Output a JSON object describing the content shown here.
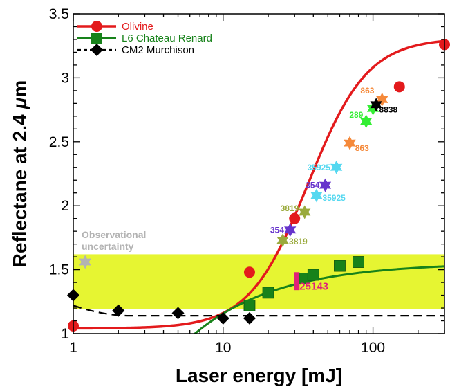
{
  "chart_data": {
    "type": "scatter",
    "title": "",
    "xlabel": "Laser energy [mJ]",
    "ylabel_parts": [
      "Reflectane at 2.4 ",
      "μ",
      "m"
    ],
    "xscale": "log",
    "xlim": [
      1,
      300
    ],
    "ylim": [
      1,
      3.5
    ],
    "x_ticks": [
      1,
      10,
      100
    ],
    "x_tick_labels": [
      "1",
      "10",
      "100"
    ],
    "y_ticks": [
      1,
      1.5,
      2,
      2.5,
      3,
      3.5
    ],
    "y_tick_labels": [
      "1",
      "1.5",
      "2",
      "2.5",
      "3",
      "3.5"
    ],
    "legend_position": "top-left",
    "series": [
      {
        "name": "Olivine",
        "color": "#e31a1c",
        "marker": "circle",
        "points": [
          [
            1,
            1.06
          ],
          [
            15,
            1.48
          ],
          [
            30,
            1.9
          ],
          [
            150,
            2.93
          ],
          [
            300,
            3.26
          ]
        ],
        "fit": {
          "type": "sigmoid-log",
          "A": 1.04,
          "B": 2.27,
          "x0": 37,
          "p": 2.2
        }
      },
      {
        "name": "L6 Chateau Renard",
        "color": "#17821a",
        "marker": "square",
        "points": [
          [
            15,
            1.22
          ],
          [
            20,
            1.32
          ],
          [
            35,
            1.43
          ],
          [
            40,
            1.46
          ],
          [
            60,
            1.53
          ],
          [
            80,
            1.56
          ]
        ],
        "fit": {
          "type": "exp-log",
          "A": 1.555,
          "B": 0.63,
          "k": 1.77,
          "xmin": 5.5
        }
      },
      {
        "name": "CM2 Murchison",
        "color": "#000000",
        "marker": "diamond",
        "points": [
          [
            1,
            1.3
          ],
          [
            2,
            1.18
          ],
          [
            5,
            1.16
          ],
          [
            10,
            1.12
          ],
          [
            15,
            1.12
          ]
        ],
        "fit": {
          "type": "dashed-level",
          "y0": 1.14,
          "start": [
            1,
            1.22
          ]
        }
      }
    ],
    "stars": [
      {
        "x": 1.2,
        "y": 1.56,
        "color": "#b3b3b3"
      },
      {
        "x": 25,
        "y": 1.73,
        "color": "#9aaa3c"
      },
      {
        "x": 28,
        "y": 1.81,
        "color": "#6633cc"
      },
      {
        "x": 35,
        "y": 1.95,
        "color": "#9aaa3c"
      },
      {
        "x": 42,
        "y": 2.08,
        "color": "#55d8f0"
      },
      {
        "x": 48,
        "y": 2.16,
        "color": "#6633cc"
      },
      {
        "x": 57,
        "y": 2.3,
        "color": "#55d8f0"
      },
      {
        "x": 70,
        "y": 2.49,
        "color": "#f5893a"
      },
      {
        "x": 90,
        "y": 2.66,
        "color": "#33ee33"
      },
      {
        "x": 100,
        "y": 2.76,
        "color": "#33ee33"
      },
      {
        "x": 115,
        "y": 2.83,
        "color": "#f5893a"
      },
      {
        "x": 105,
        "y": 2.79,
        "color": "#000000"
      }
    ],
    "star_labels": [
      {
        "text": "3819",
        "x": 27.5,
        "y": 1.72,
        "color": "#9aaa3c",
        "anchor": "start"
      },
      {
        "text": "354",
        "x": 25.5,
        "y": 1.81,
        "color": "#6633cc",
        "anchor": "end"
      },
      {
        "text": "3819",
        "x": 32,
        "y": 1.98,
        "color": "#9aaa3c",
        "anchor": "end"
      },
      {
        "text": "35925",
        "x": 46,
        "y": 2.06,
        "color": "#55d8f0",
        "anchor": "start"
      },
      {
        "text": "354",
        "x": 44,
        "y": 2.16,
        "color": "#6633cc",
        "anchor": "end"
      },
      {
        "text": "35925",
        "x": 52,
        "y": 2.3,
        "color": "#55d8f0",
        "anchor": "end"
      },
      {
        "text": "863",
        "x": 76,
        "y": 2.45,
        "color": "#f5893a",
        "anchor": "start"
      },
      {
        "text": "289",
        "x": 86,
        "y": 2.71,
        "color": "#33ee33",
        "anchor": "end"
      },
      {
        "text": "8838",
        "x": 110,
        "y": 2.75,
        "color": "#000000",
        "anchor": "start"
      },
      {
        "text": "863",
        "x": 102,
        "y": 2.9,
        "color": "#f5893a",
        "anchor": "end"
      }
    ],
    "band": {
      "y0": 1.19,
      "y1": 1.62,
      "color": "#e6f532"
    },
    "band_label": [
      "Observational",
      "uncertainty"
    ],
    "pink_marker": {
      "x": 31,
      "y0": 1.34,
      "y1": 1.48,
      "color": "#e0207a"
    },
    "pink_label": "25143"
  }
}
